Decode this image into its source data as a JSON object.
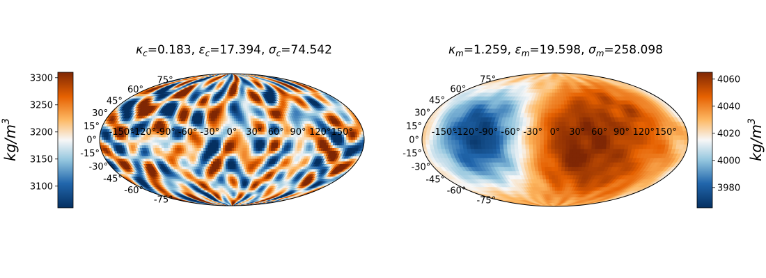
{
  "chart_data": [
    {
      "type": "heatmap",
      "projection": "mollweide",
      "title": {
        "parts": [
          {
            "greek": "κ",
            "sub": "c",
            "value": "=0.183, "
          },
          {
            "greek": "ε",
            "sub": "c",
            "value": "=17.394, "
          },
          {
            "greek": "σ",
            "sub": "c",
            "value": "=74.542"
          }
        ]
      },
      "colorbar": {
        "position": "left",
        "label": {
          "base": "kg/m",
          "sup": "3"
        },
        "range": [
          3060,
          3310
        ],
        "ticks": [
          3100,
          3150,
          3200,
          3250,
          3300
        ],
        "tick_labels": [
          "3100",
          "3150",
          "3200",
          "3250",
          "3300"
        ],
        "colormap": "diverging blue-white-orange"
      },
      "lon_ticks": [
        "-150°",
        "-120°",
        "-90°",
        "-60°",
        "-30°",
        "0°",
        "30°",
        "60°",
        "90°",
        "120°",
        "150°"
      ],
      "lon_values": [
        -150,
        -120,
        -90,
        -60,
        -30,
        0,
        30,
        60,
        90,
        120,
        150
      ],
      "lat_ticks": [
        "75°",
        "60°",
        "45°",
        "30°",
        "15°",
        "0°",
        "-15°",
        "-30°",
        "-45°",
        "-60°",
        "-75°"
      ],
      "lat_values": [
        75,
        60,
        45,
        30,
        15,
        0,
        -15,
        -30,
        -45,
        -60,
        -75
      ],
      "field": {
        "mean": 3185,
        "features": [],
        "noise_amplitude": 105,
        "seed": 17
      }
    },
    {
      "type": "heatmap",
      "projection": "mollweide",
      "title": {
        "parts": [
          {
            "greek": "κ",
            "sub": "m",
            "value": "=1.259, "
          },
          {
            "greek": "ε",
            "sub": "m",
            "value": "=19.598, "
          },
          {
            "greek": "σ",
            "sub": "m",
            "value": "=258.098"
          }
        ]
      },
      "colorbar": {
        "position": "right",
        "label": {
          "base": "kg/m",
          "sup": "3"
        },
        "range": [
          3965,
          4065
        ],
        "ticks": [
          3980,
          4000,
          4020,
          4040,
          4060
        ],
        "tick_labels": [
          "3980",
          "4000",
          "4020",
          "4040",
          "4060"
        ],
        "colormap": "diverging blue-white-orange"
      },
      "lon_ticks": [
        "-150°",
        "-120°",
        "-90°",
        "-60°",
        "-30°",
        "0°",
        "30°",
        "60°",
        "90°",
        "120°",
        "150°"
      ],
      "lon_values": [
        -150,
        -120,
        -90,
        -60,
        -30,
        0,
        30,
        60,
        90,
        120,
        150
      ],
      "lat_ticks": [
        "75°",
        "60°",
        "45°",
        "30°",
        "15°",
        "0°",
        "-15°",
        "-30°",
        "-45°",
        "-60°",
        "-75°"
      ],
      "lat_values": [
        75,
        60,
        45,
        30,
        15,
        0,
        -15,
        -30,
        -45,
        -60,
        -75
      ],
      "field": {
        "mean": 4020,
        "features": [
          {
            "lon": -95,
            "lat": 5,
            "amp": -55,
            "width": 45
          },
          {
            "lon": 20,
            "lat": -5,
            "amp": 45,
            "width": 60
          },
          {
            "lon": 130,
            "lat": 5,
            "amp": 22,
            "width": 40
          }
        ],
        "noise_amplitude": 4,
        "seed": 5
      }
    }
  ]
}
